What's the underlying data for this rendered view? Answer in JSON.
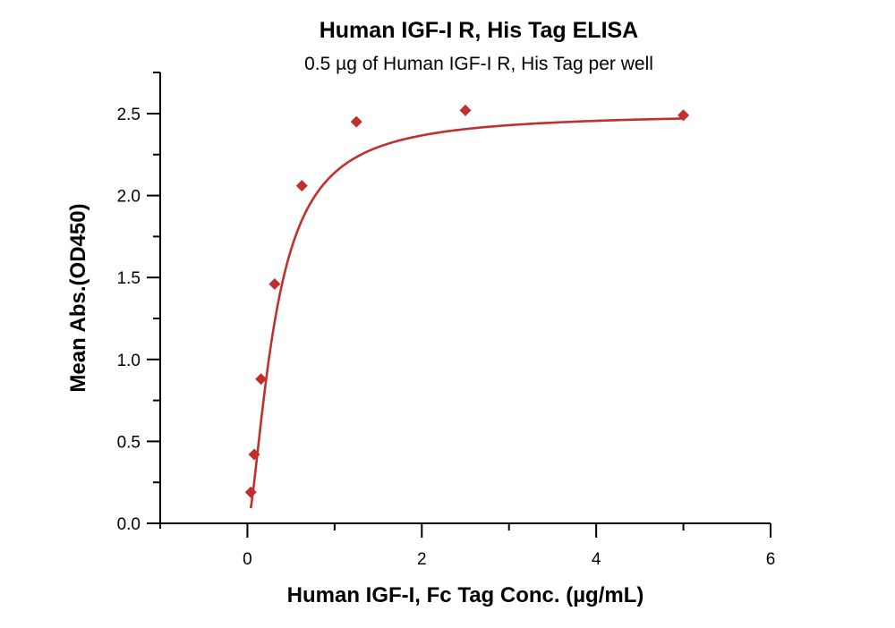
{
  "chart_data": {
    "type": "scatter",
    "title": "Human IGF-I R, His Tag ELISA",
    "subtitle": "0.5 µg of Human IGF-I R, His Tag per well",
    "xlabel": "Human IGF-I, Fc Tag Conc. (µg/mL)",
    "ylabel": "Mean Abs.(OD450)",
    "xlim": [
      -1,
      6
    ],
    "ylim": [
      0,
      2.75
    ],
    "xticks": [
      0,
      2,
      4,
      6
    ],
    "xtick_labels": [
      "0",
      "2",
      "4",
      "6"
    ],
    "yticks": [
      0.0,
      0.5,
      1.0,
      1.5,
      2.0,
      2.5
    ],
    "ytick_labels": [
      "0.0",
      "0.5",
      "1.0",
      "1.5",
      "2.0",
      "2.5"
    ],
    "grid": false,
    "legend": null,
    "series": [
      {
        "name": "Human IGF-I, Fc Tag",
        "marker": "diamond",
        "color": "#c0302f",
        "x": [
          0.039,
          0.078,
          0.156,
          0.3125,
          0.625,
          1.25,
          2.5,
          5.0
        ],
        "y": [
          0.19,
          0.42,
          0.88,
          1.46,
          2.06,
          2.45,
          2.52,
          2.49
        ],
        "fit": "4-parameter logistic curve (solid red line)"
      }
    ]
  },
  "colors": {
    "series": "#c0302f",
    "axis": "#000000"
  }
}
